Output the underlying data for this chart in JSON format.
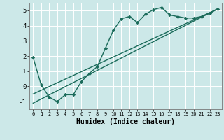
{
  "title": "",
  "xlabel": "Humidex (Indice chaleur)",
  "bg_color": "#cce8e8",
  "line_color": "#1a6b5a",
  "grid_color": "#ffffff",
  "xlim": [
    -0.5,
    23.5
  ],
  "ylim": [
    -1.5,
    5.5
  ],
  "yticks": [
    -1,
    0,
    1,
    2,
    3,
    4,
    5
  ],
  "xticks": [
    0,
    1,
    2,
    3,
    4,
    5,
    6,
    7,
    8,
    9,
    10,
    11,
    12,
    13,
    14,
    15,
    16,
    17,
    18,
    19,
    20,
    21,
    22,
    23
  ],
  "curve1_x": [
    0,
    1,
    2,
    3,
    4,
    5,
    6,
    7,
    8,
    9,
    10,
    11,
    12,
    13,
    14,
    15,
    16,
    17,
    18,
    19,
    20,
    21,
    22,
    23
  ],
  "curve1_y": [
    1.9,
    0.1,
    -0.7,
    -1.0,
    -0.55,
    -0.55,
    0.3,
    0.85,
    1.3,
    2.5,
    3.7,
    4.45,
    4.6,
    4.2,
    4.75,
    5.05,
    5.2,
    4.7,
    4.6,
    4.5,
    4.5,
    4.6,
    4.8,
    5.1
  ],
  "line2_x": [
    0,
    23
  ],
  "line2_y": [
    -1.1,
    5.1
  ],
  "line3_x": [
    0,
    23
  ],
  "line3_y": [
    -0.5,
    5.1
  ],
  "marker": "D",
  "marker_size": 2.2,
  "line_width": 1.0
}
